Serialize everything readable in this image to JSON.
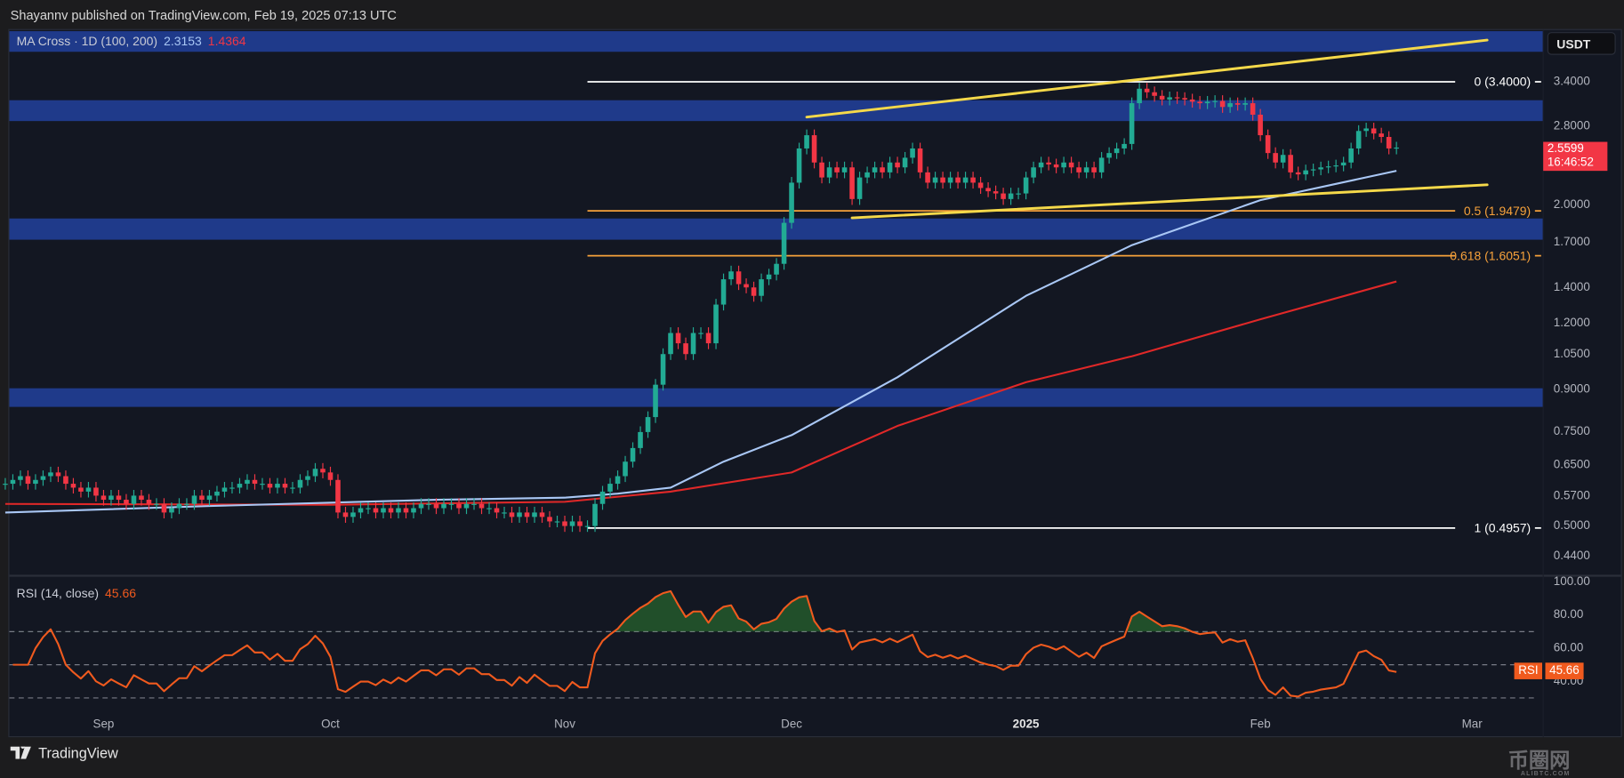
{
  "header": {
    "publisher_line": "Shayannv published on TradingView.com, Feb 19, 2025 07:13 UTC"
  },
  "legend": {
    "ma_label": "MA Cross · 1D (100, 200)",
    "ma100_value": "2.3153",
    "ma200_value": "1.4364"
  },
  "rsi_legend": {
    "label": "RSI (14, close)",
    "value": "45.66",
    "tag": "RSI",
    "tag_value": "45.66"
  },
  "currency_button": "USDT",
  "current_price": {
    "price": "2.5599",
    "countdown": "16:46:52"
  },
  "footer": {
    "brand": "TradingView",
    "watermark": "币圈网",
    "watermark_sub": "ALIBTC.COM"
  },
  "colors": {
    "up": "#22ab94",
    "down": "#f23645",
    "zone": "#1f3a8a",
    "ma100": "#a9c7f5",
    "ma200": "#e02828",
    "rsi": "#f05a1e",
    "trendline": "#f5d94a",
    "fib_mid": "#f7a23b",
    "fib_end": "#ffffff",
    "background": "#131722"
  },
  "chart_data": {
    "type": "candlestick",
    "interval": "1D",
    "yscale": "log",
    "ylim": [
      0.42,
      4.3
    ],
    "start_date": "2024-08-19",
    "closes": [
      0.6,
      0.61,
      0.62,
      0.6,
      0.61,
      0.62,
      0.63,
      0.62,
      0.6,
      0.59,
      0.58,
      0.59,
      0.57,
      0.56,
      0.57,
      0.56,
      0.55,
      0.57,
      0.56,
      0.55,
      0.55,
      0.53,
      0.54,
      0.55,
      0.55,
      0.57,
      0.56,
      0.57,
      0.58,
      0.59,
      0.59,
      0.6,
      0.61,
      0.6,
      0.6,
      0.59,
      0.6,
      0.59,
      0.59,
      0.61,
      0.62,
      0.64,
      0.63,
      0.61,
      0.53,
      0.52,
      0.53,
      0.54,
      0.54,
      0.53,
      0.54,
      0.53,
      0.54,
      0.53,
      0.54,
      0.55,
      0.55,
      0.54,
      0.55,
      0.55,
      0.54,
      0.55,
      0.55,
      0.54,
      0.54,
      0.53,
      0.53,
      0.52,
      0.53,
      0.52,
      0.53,
      0.52,
      0.51,
      0.51,
      0.5,
      0.51,
      0.5,
      0.5,
      0.55,
      0.58,
      0.6,
      0.62,
      0.66,
      0.7,
      0.75,
      0.8,
      0.92,
      1.05,
      1.15,
      1.1,
      1.05,
      1.15,
      1.15,
      1.1,
      1.3,
      1.45,
      1.5,
      1.42,
      1.4,
      1.35,
      1.45,
      1.48,
      1.55,
      1.85,
      2.2,
      2.55,
      2.7,
      2.4,
      2.25,
      2.35,
      2.3,
      2.35,
      2.05,
      2.25,
      2.3,
      2.35,
      2.3,
      2.4,
      2.35,
      2.45,
      2.55,
      2.3,
      2.2,
      2.25,
      2.2,
      2.25,
      2.2,
      2.25,
      2.2,
      2.15,
      2.12,
      2.1,
      2.05,
      2.1,
      2.1,
      2.25,
      2.35,
      2.4,
      2.38,
      2.35,
      2.4,
      2.35,
      2.3,
      2.35,
      2.3,
      2.45,
      2.5,
      2.55,
      2.6,
      3.1,
      3.3,
      3.25,
      3.2,
      3.15,
      3.18,
      3.17,
      3.15,
      3.12,
      3.1,
      3.12,
      3.13,
      3.05,
      3.1,
      3.08,
      3.1,
      2.95,
      2.7,
      2.5,
      2.4,
      2.48,
      2.3,
      2.28,
      2.32,
      2.33,
      2.35,
      2.36,
      2.37,
      2.4,
      2.55,
      2.75,
      2.78,
      2.72,
      2.68,
      2.55,
      2.56
    ],
    "ma100": [
      [
        "2024-08-19",
        0.53
      ],
      [
        "2024-09-15",
        0.545
      ],
      [
        "2024-10-15",
        0.56
      ],
      [
        "2024-11-01",
        0.565
      ],
      [
        "2024-11-08",
        0.575
      ],
      [
        "2024-11-15",
        0.59
      ],
      [
        "2024-11-22",
        0.66
      ],
      [
        "2024-12-01",
        0.74
      ],
      [
        "2024-12-15",
        0.95
      ],
      [
        "2025-01-01",
        1.35
      ],
      [
        "2025-01-15",
        1.68
      ],
      [
        "2025-02-01",
        2.04
      ],
      [
        "2025-02-19",
        2.3153
      ]
    ],
    "ma200": [
      [
        "2024-08-19",
        0.55
      ],
      [
        "2024-10-01",
        0.548
      ],
      [
        "2024-11-01",
        0.555
      ],
      [
        "2024-11-15",
        0.58
      ],
      [
        "2024-12-01",
        0.63
      ],
      [
        "2024-12-15",
        0.77
      ],
      [
        "2025-01-01",
        0.93
      ],
      [
        "2025-01-15",
        1.04
      ],
      [
        "2025-02-01",
        1.22
      ],
      [
        "2025-02-19",
        1.4364
      ]
    ],
    "zones": [
      [
        3.87,
        4.23
      ],
      [
        2.87,
        3.14
      ],
      [
        1.72,
        1.885
      ],
      [
        0.836,
        0.906
      ]
    ],
    "fib_levels": [
      {
        "label": "0 (3.4000)",
        "price": 3.4,
        "color": "#ffffff"
      },
      {
        "label": "0.5 (1.9479)",
        "price": 1.9479,
        "color": "#f7a23b"
      },
      {
        "label": "0.618 (1.6051)",
        "price": 1.6051,
        "color": "#f7a23b"
      },
      {
        "label": "1 (0.4957)",
        "price": 0.4957,
        "color": "#ffffff"
      }
    ],
    "fib_start_date": "2024-11-04",
    "trendlines": [
      {
        "from": [
          "2024-12-03",
          2.92
        ],
        "to": [
          "2025-03-03",
          4.07
        ]
      },
      {
        "from": [
          "2024-12-09",
          1.89
        ],
        "to": [
          "2025-03-03",
          2.18
        ]
      }
    ],
    "price_ticks": [
      "3.4000",
      "2.8000",
      "2.0000",
      "1.7000",
      "1.4000",
      "1.2000",
      "1.0500",
      "0.9000",
      "0.7500",
      "0.6500",
      "0.5700",
      "0.5000",
      "0.4400"
    ],
    "time_ticks": [
      {
        "label": "Sep",
        "date": "2024-09-01"
      },
      {
        "label": "Oct",
        "date": "2024-10-01"
      },
      {
        "label": "Nov",
        "date": "2024-11-01"
      },
      {
        "label": "Dec",
        "date": "2024-12-01"
      },
      {
        "label": "2025",
        "date": "2025-01-01",
        "bold": true
      },
      {
        "label": "Feb",
        "date": "2025-02-01"
      },
      {
        "label": "Mar",
        "date": "2025-03-01"
      }
    ],
    "rsi": {
      "period": 14,
      "last": 45.66,
      "ylim": [
        20,
        100
      ],
      "ticks": [
        "100.00",
        "80.00",
        "60.00",
        "40.00"
      ],
      "bands": [
        70,
        50,
        30
      ]
    }
  }
}
